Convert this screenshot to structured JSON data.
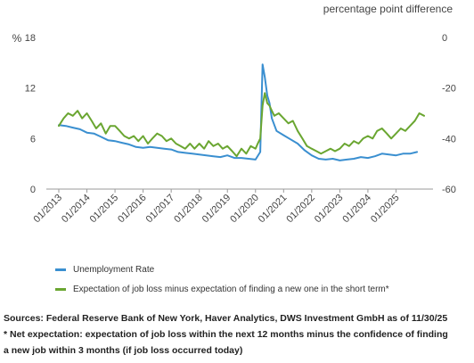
{
  "chart_data": {
    "type": "line",
    "right_axis_title": "percentage point difference",
    "left_axis_unit": "%",
    "left_axis": {
      "ylim": [
        0,
        18
      ],
      "ticks": [
        0,
        6,
        12,
        18
      ]
    },
    "right_axis": {
      "ylim": [
        -60,
        0
      ],
      "ticks": [
        -60,
        -40,
        -20,
        0
      ]
    },
    "x_range": [
      2013.0,
      2026.0
    ],
    "x_tick_labels": [
      "01/2013",
      "01/2014",
      "01/2015",
      "01/2016",
      "01/2017",
      "01/2018",
      "01/2019",
      "01/2020",
      "01/2021",
      "01/2022",
      "01/2023",
      "01/2024",
      "01/2025"
    ],
    "x_tick_positions": [
      2013,
      2014,
      2015,
      2016,
      2017,
      2018,
      2019,
      2020,
      2021,
      2022,
      2023,
      2024,
      2025
    ],
    "grid": false,
    "legend_placement": "bottom-left",
    "series": [
      {
        "name": "Unemployment Rate",
        "axis": "left",
        "color": "#3a8fd0",
        "points": [
          [
            2013.0,
            7.6
          ],
          [
            2013.25,
            7.5
          ],
          [
            2013.5,
            7.3
          ],
          [
            2013.75,
            7.1
          ],
          [
            2014.0,
            6.7
          ],
          [
            2014.25,
            6.6
          ],
          [
            2014.5,
            6.2
          ],
          [
            2014.75,
            5.8
          ],
          [
            2015.0,
            5.7
          ],
          [
            2015.25,
            5.5
          ],
          [
            2015.5,
            5.3
          ],
          [
            2015.75,
            5.0
          ],
          [
            2016.0,
            4.9
          ],
          [
            2016.25,
            5.0
          ],
          [
            2016.5,
            4.9
          ],
          [
            2016.75,
            4.8
          ],
          [
            2017.0,
            4.7
          ],
          [
            2017.25,
            4.4
          ],
          [
            2017.5,
            4.3
          ],
          [
            2017.75,
            4.2
          ],
          [
            2018.0,
            4.1
          ],
          [
            2018.25,
            4.0
          ],
          [
            2018.5,
            3.9
          ],
          [
            2018.75,
            3.8
          ],
          [
            2019.0,
            4.0
          ],
          [
            2019.25,
            3.7
          ],
          [
            2019.5,
            3.7
          ],
          [
            2019.75,
            3.6
          ],
          [
            2020.0,
            3.5
          ],
          [
            2020.17,
            4.4
          ],
          [
            2020.25,
            14.8
          ],
          [
            2020.33,
            13.3
          ],
          [
            2020.42,
            11.1
          ],
          [
            2020.5,
            10.2
          ],
          [
            2020.58,
            8.4
          ],
          [
            2020.75,
            6.9
          ],
          [
            2021.0,
            6.4
          ],
          [
            2021.25,
            5.9
          ],
          [
            2021.5,
            5.4
          ],
          [
            2021.75,
            4.6
          ],
          [
            2022.0,
            4.0
          ],
          [
            2022.25,
            3.6
          ],
          [
            2022.5,
            3.5
          ],
          [
            2022.75,
            3.6
          ],
          [
            2023.0,
            3.4
          ],
          [
            2023.25,
            3.5
          ],
          [
            2023.5,
            3.6
          ],
          [
            2023.75,
            3.8
          ],
          [
            2024.0,
            3.7
          ],
          [
            2024.25,
            3.9
          ],
          [
            2024.5,
            4.2
          ],
          [
            2024.75,
            4.1
          ],
          [
            2025.0,
            4.0
          ],
          [
            2025.25,
            4.2
          ],
          [
            2025.5,
            4.2
          ],
          [
            2025.75,
            4.4
          ]
        ]
      },
      {
        "name": "Expectation of job loss minus expectation of finding a new one in the short term*",
        "axis": "right",
        "color": "#6aa631",
        "points": [
          [
            2013.0,
            -35
          ],
          [
            2013.17,
            -32
          ],
          [
            2013.33,
            -30
          ],
          [
            2013.5,
            -31
          ],
          [
            2013.67,
            -29
          ],
          [
            2013.83,
            -32
          ],
          [
            2014.0,
            -30
          ],
          [
            2014.17,
            -33
          ],
          [
            2014.33,
            -36
          ],
          [
            2014.5,
            -34
          ],
          [
            2014.67,
            -38
          ],
          [
            2014.83,
            -35
          ],
          [
            2015.0,
            -35
          ],
          [
            2015.17,
            -37
          ],
          [
            2015.33,
            -39
          ],
          [
            2015.5,
            -40
          ],
          [
            2015.67,
            -39
          ],
          [
            2015.83,
            -41
          ],
          [
            2016.0,
            -39
          ],
          [
            2016.17,
            -42
          ],
          [
            2016.33,
            -40
          ],
          [
            2016.5,
            -38
          ],
          [
            2016.67,
            -39
          ],
          [
            2016.83,
            -41
          ],
          [
            2017.0,
            -40
          ],
          [
            2017.17,
            -42
          ],
          [
            2017.33,
            -43
          ],
          [
            2017.5,
            -44
          ],
          [
            2017.67,
            -42
          ],
          [
            2017.83,
            -44
          ],
          [
            2018.0,
            -42
          ],
          [
            2018.17,
            -44
          ],
          [
            2018.33,
            -41
          ],
          [
            2018.5,
            -43
          ],
          [
            2018.67,
            -42
          ],
          [
            2018.83,
            -44
          ],
          [
            2019.0,
            -43
          ],
          [
            2019.17,
            -45
          ],
          [
            2019.33,
            -47
          ],
          [
            2019.5,
            -44
          ],
          [
            2019.67,
            -46
          ],
          [
            2019.83,
            -43
          ],
          [
            2020.0,
            -44
          ],
          [
            2020.08,
            -42
          ],
          [
            2020.17,
            -40
          ],
          [
            2020.25,
            -27
          ],
          [
            2020.33,
            -22
          ],
          [
            2020.42,
            -26
          ],
          [
            2020.5,
            -27
          ],
          [
            2020.58,
            -29
          ],
          [
            2020.67,
            -31
          ],
          [
            2020.83,
            -30
          ],
          [
            2021.0,
            -32
          ],
          [
            2021.17,
            -34
          ],
          [
            2021.33,
            -33
          ],
          [
            2021.5,
            -37
          ],
          [
            2021.67,
            -40
          ],
          [
            2021.83,
            -43
          ],
          [
            2022.0,
            -44
          ],
          [
            2022.17,
            -45
          ],
          [
            2022.33,
            -46
          ],
          [
            2022.5,
            -45
          ],
          [
            2022.67,
            -44
          ],
          [
            2022.83,
            -45
          ],
          [
            2023.0,
            -44
          ],
          [
            2023.17,
            -42
          ],
          [
            2023.33,
            -43
          ],
          [
            2023.5,
            -41
          ],
          [
            2023.67,
            -42
          ],
          [
            2023.83,
            -40
          ],
          [
            2024.0,
            -39
          ],
          [
            2024.17,
            -40
          ],
          [
            2024.33,
            -37
          ],
          [
            2024.5,
            -36
          ],
          [
            2024.67,
            -38
          ],
          [
            2024.83,
            -40
          ],
          [
            2025.0,
            -38
          ],
          [
            2025.17,
            -36
          ],
          [
            2025.33,
            -37
          ],
          [
            2025.5,
            -35
          ],
          [
            2025.67,
            -33
          ],
          [
            2025.83,
            -30
          ],
          [
            2026.0,
            -31
          ]
        ]
      }
    ]
  },
  "legend": {
    "items": [
      {
        "label": "Unemployment Rate",
        "color": "#3a8fd0"
      },
      {
        "label": "Expectation of job loss minus expectation of finding a new one in the short term*",
        "color": "#6aa631"
      }
    ]
  },
  "notes": {
    "sources": "Sources: Federal Reserve Bank of New York, Haver Analytics, DWS Investment GmbH as of 11/30/25",
    "footnote_line1": "* Net expectation: expectation of job loss within the next 12 months minus the confidence of finding",
    "footnote_line2": "a new job within 3 months (if job loss occurred today)"
  }
}
